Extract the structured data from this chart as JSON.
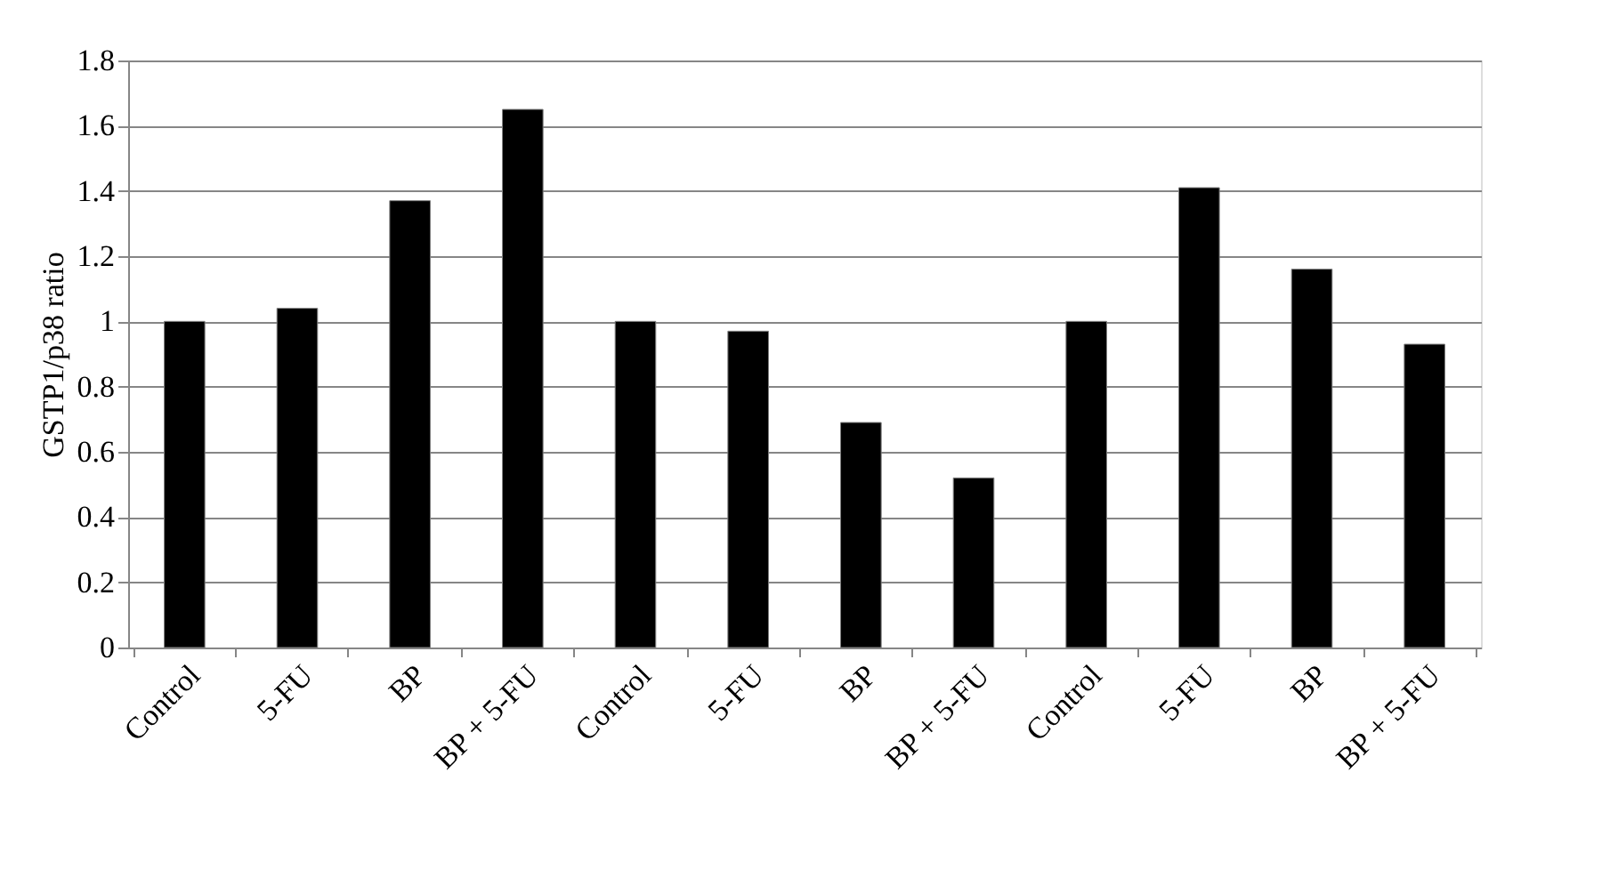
{
  "chart_data": {
    "type": "bar",
    "ylabel": "GSTP1/p38 ratio",
    "categories": [
      "Control",
      "5-FU",
      "BP",
      "BP + 5-FU",
      "Control",
      "5-FU",
      "BP",
      "BP + 5-FU",
      "Control",
      "5-FU",
      "BP",
      "BP + 5-FU"
    ],
    "values": [
      1.0,
      1.04,
      1.37,
      1.65,
      1.0,
      0.97,
      0.69,
      0.52,
      1.0,
      1.41,
      1.16,
      0.93
    ],
    "color": "#000000",
    "ylim": [
      0,
      1.8
    ],
    "yticks": [
      0,
      0.2,
      0.4,
      0.6,
      0.8,
      1,
      1.2,
      1.4,
      1.6,
      1.8
    ],
    "grid": "y"
  }
}
